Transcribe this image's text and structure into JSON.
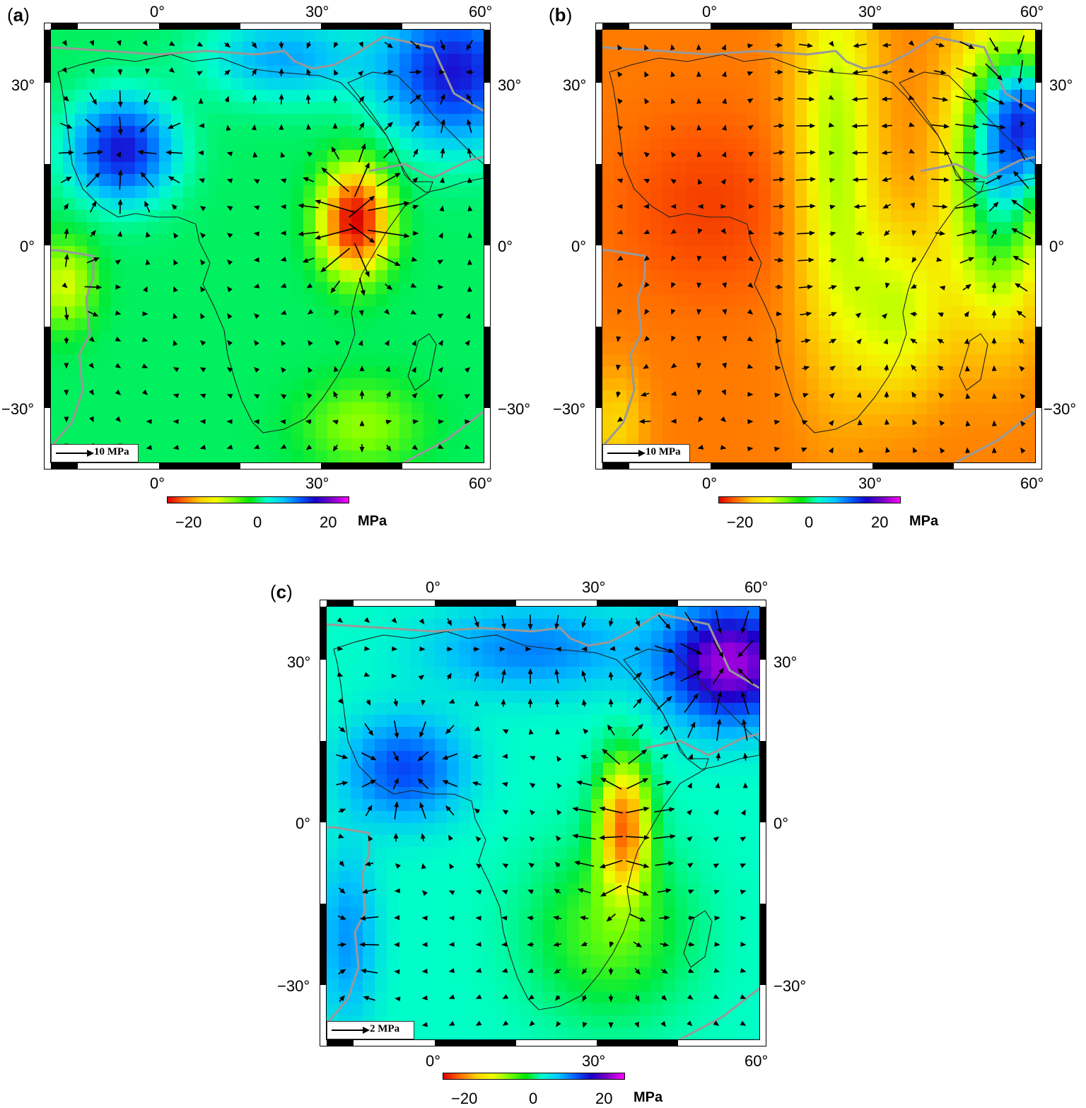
{
  "panels": [
    {
      "label_open": "(",
      "label_letter": "a",
      "label_close": ")",
      "lon_ticks": [
        "0°",
        "30°",
        "60°"
      ],
      "lat_ticks": [
        "30°",
        "0°",
        "−30°"
      ],
      "scale_label": "10 MPa",
      "colorbar": {
        "ticks": [
          "−20",
          "0",
          "20"
        ],
        "unit": "MPa"
      },
      "field": "a"
    },
    {
      "label_open": "(",
      "label_letter": "b",
      "label_close": ")",
      "lon_ticks": [
        "0°",
        "30°",
        "60°"
      ],
      "lat_ticks": [
        "30°",
        "0°",
        "−30°"
      ],
      "scale_label": "10 MPa",
      "colorbar": {
        "ticks": [
          "−20",
          "0",
          "20"
        ],
        "unit": "MPa"
      },
      "field": "b"
    },
    {
      "label_open": "(",
      "label_letter": "c",
      "label_close": ")",
      "lon_ticks": [
        "0°",
        "30°",
        "60°"
      ],
      "lat_ticks": [
        "30°",
        "0°",
        "−30°"
      ],
      "scale_label": "2 MPa",
      "colorbar": {
        "ticks": [
          "−20",
          "0",
          "20"
        ],
        "unit": "MPa"
      },
      "field": "c"
    }
  ],
  "colors": {
    "coast": "#222222",
    "plate_boundary": "#999999",
    "arrow": "#000000"
  }
}
